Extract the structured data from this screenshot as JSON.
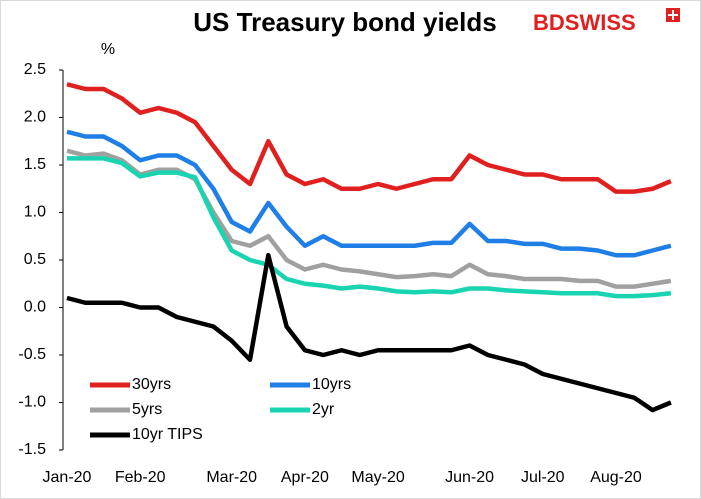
{
  "chart_data": {
    "type": "line",
    "title": "US Treasury bond yields",
    "unit_label": "%",
    "logo": "BDSWISS",
    "categories": [
      "Jan-20",
      null,
      null,
      null,
      "Feb-20",
      null,
      null,
      null,
      null,
      "Mar-20",
      null,
      null,
      null,
      "Apr-20",
      null,
      null,
      null,
      "May-20",
      null,
      null,
      null,
      null,
      "Jun-20",
      null,
      null,
      null,
      "Jul-20",
      null,
      null,
      null,
      "Aug-20",
      null,
      null,
      null
    ],
    "series": [
      {
        "name": "30yrs",
        "color": "#e0201f",
        "values": [
          2.35,
          2.3,
          2.3,
          2.2,
          2.05,
          2.1,
          2.05,
          1.95,
          1.7,
          1.45,
          1.3,
          1.75,
          1.4,
          1.3,
          1.35,
          1.25,
          1.25,
          1.3,
          1.25,
          1.3,
          1.35,
          1.35,
          1.6,
          1.5,
          1.45,
          1.4,
          1.4,
          1.35,
          1.35,
          1.35,
          1.22,
          1.22,
          1.25,
          1.33
        ]
      },
      {
        "name": "10yrs",
        "color": "#1f7fe6",
        "values": [
          1.85,
          1.8,
          1.8,
          1.7,
          1.55,
          1.6,
          1.6,
          1.5,
          1.25,
          0.9,
          0.8,
          1.1,
          0.85,
          0.65,
          0.75,
          0.65,
          0.65,
          0.65,
          0.65,
          0.65,
          0.68,
          0.68,
          0.88,
          0.7,
          0.7,
          0.67,
          0.67,
          0.62,
          0.62,
          0.6,
          0.55,
          0.55,
          0.6,
          0.65
        ]
      },
      {
        "name": "5yrs",
        "color": "#a0a0a0",
        "values": [
          1.65,
          1.6,
          1.62,
          1.55,
          1.4,
          1.45,
          1.45,
          1.35,
          1.0,
          0.7,
          0.65,
          0.75,
          0.5,
          0.4,
          0.45,
          0.4,
          0.38,
          0.35,
          0.32,
          0.33,
          0.35,
          0.33,
          0.45,
          0.35,
          0.33,
          0.3,
          0.3,
          0.3,
          0.28,
          0.28,
          0.22,
          0.22,
          0.25,
          0.28
        ]
      },
      {
        "name": "2yr",
        "color": "#19d4b0",
        "values": [
          1.57,
          1.57,
          1.57,
          1.52,
          1.38,
          1.42,
          1.42,
          1.37,
          0.95,
          0.6,
          0.5,
          0.45,
          0.3,
          0.25,
          0.23,
          0.2,
          0.22,
          0.2,
          0.17,
          0.16,
          0.17,
          0.16,
          0.2,
          0.2,
          0.18,
          0.17,
          0.16,
          0.15,
          0.15,
          0.15,
          0.12,
          0.12,
          0.13,
          0.15
        ]
      },
      {
        "name": "10yr TIPS",
        "color": "#000000",
        "values": [
          0.1,
          0.05,
          0.05,
          0.05,
          0.0,
          0.0,
          -0.1,
          -0.15,
          -0.2,
          -0.35,
          -0.55,
          0.55,
          -0.2,
          -0.45,
          -0.5,
          -0.45,
          -0.5,
          -0.45,
          -0.45,
          -0.45,
          -0.45,
          -0.45,
          -0.4,
          -0.5,
          -0.55,
          -0.6,
          -0.7,
          -0.75,
          -0.8,
          -0.85,
          -0.9,
          -0.95,
          -1.08,
          -1.0
        ]
      }
    ],
    "ylim": [
      -1.5,
      2.5
    ],
    "yticks": [
      2.5,
      {
        "value": 2,
        "label": "2.0"
      },
      1.5,
      {
        "value": 1,
        "label": "1.0"
      },
      0.5,
      {
        "value": 0,
        "label": "0.0"
      },
      -0.5,
      {
        "value": -1,
        "label": "-1.0"
      },
      -1.5
    ],
    "grid": false,
    "legend": "lower left"
  }
}
